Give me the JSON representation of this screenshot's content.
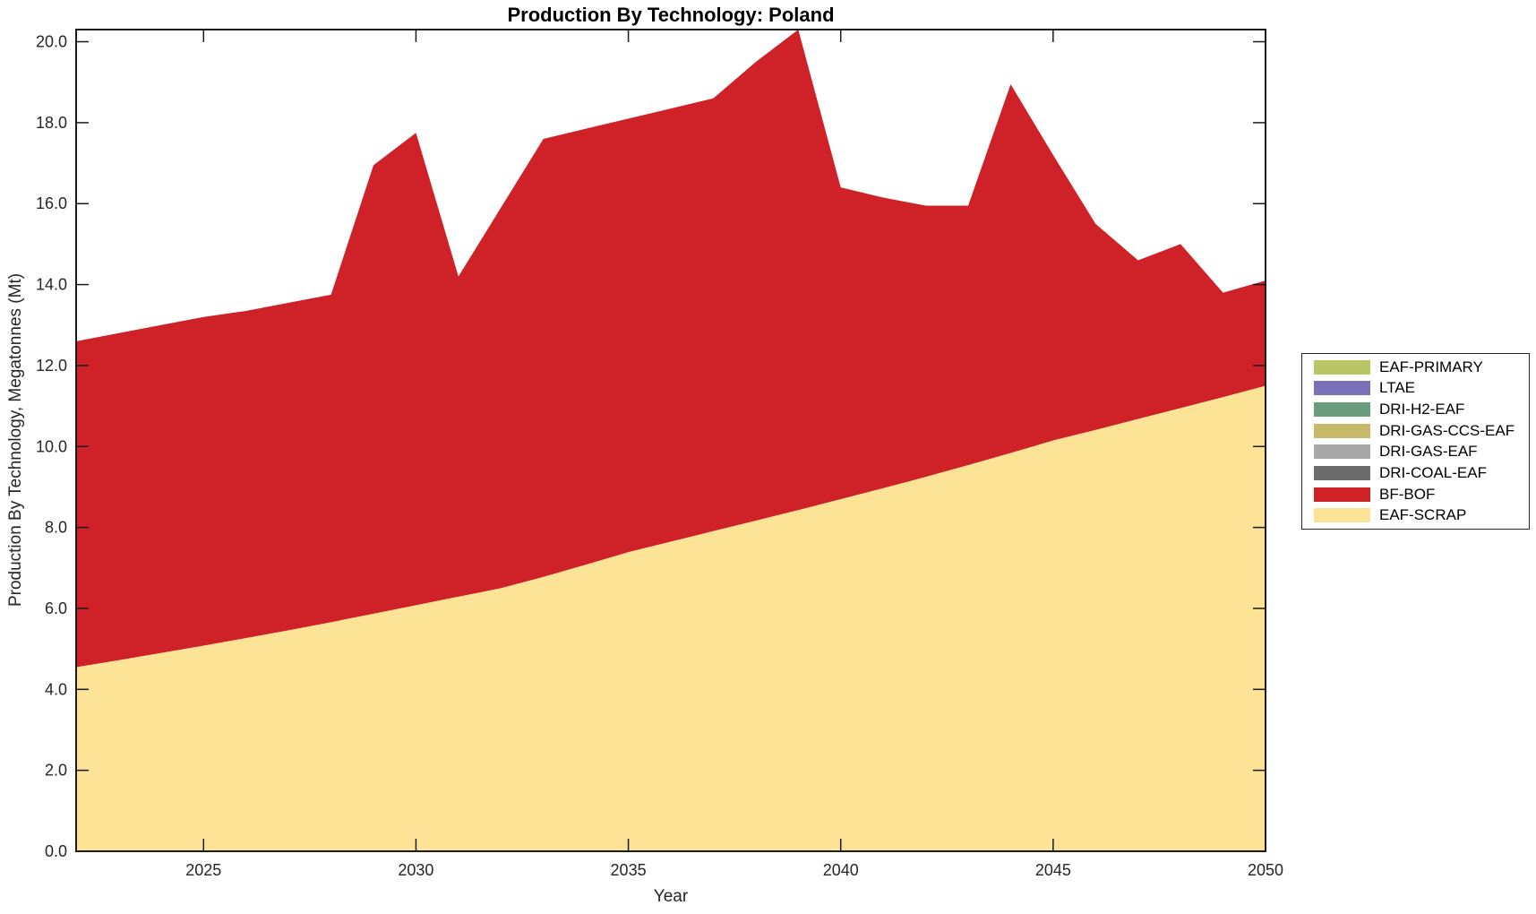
{
  "chart_data": {
    "type": "area",
    "stacked": true,
    "title": "Production By Technology: Poland",
    "xlabel": "Year",
    "ylabel": "Production By Technology, Megatonnes (Mt)",
    "xlim": [
      2022,
      2050
    ],
    "ylim": [
      0,
      20.3
    ],
    "grid": false,
    "legend_position": "right-outside",
    "x_ticks": [
      2025,
      2030,
      2035,
      2040,
      2045,
      2050
    ],
    "x_tick_labels": [
      "2025",
      "2030",
      "2035",
      "2040",
      "2045",
      "2050"
    ],
    "y_ticks": [
      0,
      2,
      4,
      6,
      8,
      10,
      12,
      14,
      16,
      18,
      20
    ],
    "y_tick_labels": [
      "0.0",
      "2.0",
      "4.0",
      "6.0",
      "8.0",
      "10.0",
      "12.0",
      "14.0",
      "16.0",
      "18.0",
      "20.0"
    ],
    "x": [
      2022,
      2023,
      2024,
      2025,
      2026,
      2027,
      2028,
      2029,
      2030,
      2031,
      2032,
      2033,
      2034,
      2035,
      2036,
      2037,
      2038,
      2039,
      2040,
      2041,
      2042,
      2043,
      2044,
      2045,
      2046,
      2047,
      2048,
      2049,
      2050
    ],
    "series": [
      {
        "name": "EAF-SCRAP",
        "color": "#FCE396",
        "values": [
          4.55,
          4.72,
          4.9,
          5.08,
          5.27,
          5.46,
          5.66,
          5.87,
          6.08,
          6.29,
          6.5,
          6.78,
          7.08,
          7.39,
          7.65,
          7.91,
          8.17,
          8.43,
          8.7,
          8.97,
          9.25,
          9.54,
          9.84,
          10.15,
          10.41,
          10.68,
          10.95,
          11.22,
          11.5
        ]
      },
      {
        "name": "BF-BOF",
        "color": "#CF2128",
        "values": [
          8.05,
          8.08,
          8.1,
          8.12,
          8.08,
          8.09,
          8.09,
          11.08,
          11.67,
          7.91,
          9.4,
          10.82,
          10.77,
          10.71,
          10.7,
          10.69,
          11.33,
          11.87,
          7.7,
          7.18,
          6.7,
          6.41,
          9.11,
          7.05,
          5.09,
          3.92,
          4.05,
          2.58,
          2.6
        ]
      },
      {
        "name": "DRI-COAL-EAF",
        "color": "#6C6C6C",
        "values": [
          0,
          0,
          0,
          0,
          0,
          0,
          0,
          0,
          0,
          0,
          0,
          0,
          0,
          0,
          0,
          0,
          0,
          0,
          0,
          0,
          0,
          0,
          0,
          0,
          0,
          0,
          0,
          0,
          0
        ]
      },
      {
        "name": "DRI-GAS-EAF",
        "color": "#A8A8A8",
        "values": [
          0,
          0,
          0,
          0,
          0,
          0,
          0,
          0,
          0,
          0,
          0,
          0,
          0,
          0,
          0,
          0,
          0,
          0,
          0,
          0,
          0,
          0,
          0,
          0,
          0,
          0,
          0,
          0,
          0
        ]
      },
      {
        "name": "DRI-GAS-CCS-EAF",
        "color": "#C6BA6A",
        "values": [
          0,
          0,
          0,
          0,
          0,
          0,
          0,
          0,
          0,
          0,
          0,
          0,
          0,
          0,
          0,
          0,
          0,
          0,
          0,
          0,
          0,
          0,
          0,
          0,
          0,
          0,
          0,
          0,
          0
        ]
      },
      {
        "name": "DRI-H2-EAF",
        "color": "#6C9C7E",
        "values": [
          0,
          0,
          0,
          0,
          0,
          0,
          0,
          0,
          0,
          0,
          0,
          0,
          0,
          0,
          0,
          0,
          0,
          0,
          0,
          0,
          0,
          0,
          0,
          0,
          0,
          0,
          0,
          0,
          0
        ]
      },
      {
        "name": "LTAE",
        "color": "#7A71B8",
        "values": [
          0,
          0,
          0,
          0,
          0,
          0,
          0,
          0,
          0,
          0,
          0,
          0,
          0,
          0,
          0,
          0,
          0,
          0,
          0,
          0,
          0,
          0,
          0,
          0,
          0,
          0,
          0,
          0,
          0
        ]
      },
      {
        "name": "EAF-PRIMARY",
        "color": "#B9C666",
        "values": [
          0,
          0,
          0,
          0,
          0,
          0,
          0,
          0,
          0,
          0,
          0,
          0,
          0,
          0,
          0,
          0,
          0,
          0,
          0,
          0,
          0,
          0,
          0,
          0,
          0,
          0,
          0,
          0,
          0
        ]
      }
    ]
  },
  "legend": {
    "items": [
      {
        "label": "EAF-PRIMARY",
        "color": "#B9C666"
      },
      {
        "label": "LTAE",
        "color": "#7A71B8"
      },
      {
        "label": "DRI-H2-EAF",
        "color": "#6C9C7E"
      },
      {
        "label": "DRI-GAS-CCS-EAF",
        "color": "#C6BA6A"
      },
      {
        "label": "DRI-GAS-EAF",
        "color": "#A8A8A8"
      },
      {
        "label": "DRI-COAL-EAF",
        "color": "#6C6C6C"
      },
      {
        "label": "BF-BOF",
        "color": "#CF2128"
      },
      {
        "label": "EAF-SCRAP",
        "color": "#FCE396"
      }
    ]
  }
}
